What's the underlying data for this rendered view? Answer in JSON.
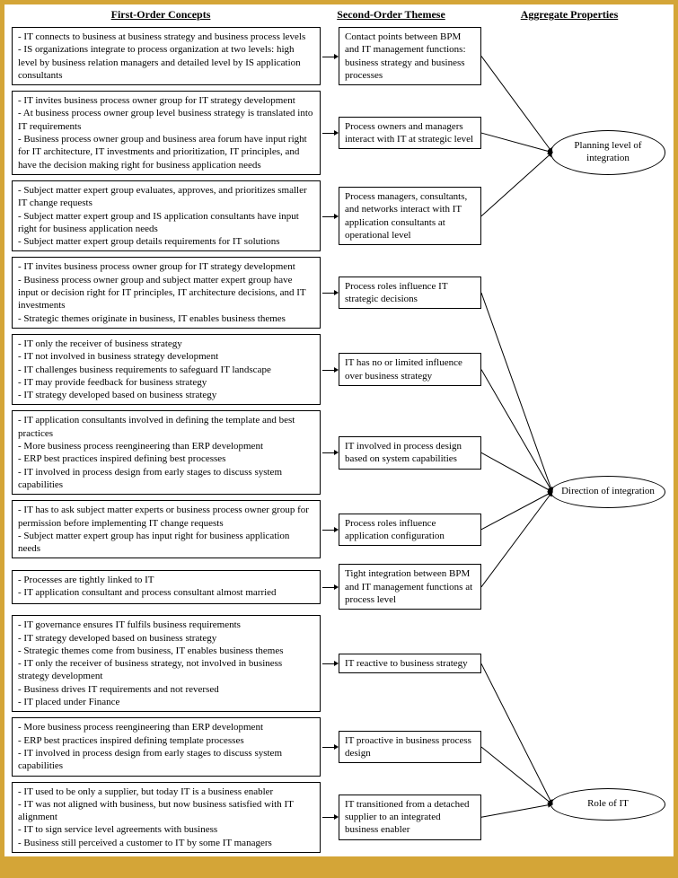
{
  "headers": {
    "col1": "First-Order Concepts",
    "col2": "Second-Order Themese",
    "col3": "Aggregate Properties"
  },
  "rows": [
    {
      "first": "- IT connects to business at business strategy and business process levels\n- IS organizations integrate to process organization at two levels: high level by business relation managers and detailed level by IS application consultants",
      "second": "Contact points between BPM and IT management functions: business strategy and business processes"
    },
    {
      "first": "- IT invites business process owner group for IT strategy development\n- At business process owner group level business strategy is translated into IT requirements\n- Business process owner group and business area forum have input right for IT architecture, IT investments and prioritization, IT principles, and have the decision making right for business application needs",
      "second": "Process owners and managers interact with IT at strategic level"
    },
    {
      "first": "- Subject matter expert group evaluates, approves, and prioritizes smaller IT change requests\n- Subject matter expert group and IS application consultants have input right for business application needs\n- Subject matter expert group details requirements for IT solutions",
      "second": "Process managers, consultants, and networks interact with IT application consultants at operational level"
    },
    {
      "first": "- IT invites business process owner group for IT strategy development\n- Business process owner group and subject matter expert group have input or decision right for IT principles, IT architecture decisions, and IT investments\n- Strategic themes originate in business, IT enables business themes",
      "second": "Process roles influence IT strategic decisions"
    },
    {
      "first": "- IT only the receiver of business strategy\n- IT not involved in business strategy development\n- IT challenges business requirements to safeguard IT landscape\n- IT may provide feedback for business strategy\n- IT strategy developed based on business strategy",
      "second": "IT has no or limited influence over business strategy"
    },
    {
      "first": "- IT application consultants involved in defining the template and best practices\n- More business process reengineering than ERP development\n- ERP best practices inspired defining best processes\n- IT involved in process design from early stages to discuss system capabilities",
      "second": "IT involved in process design based on system capabilities"
    },
    {
      "first": "- IT has to ask subject matter experts or business process owner group for permission before implementing IT change requests\n- Subject matter expert group has input right for business application needs",
      "second": "Process roles influence application configuration"
    },
    {
      "first": "- Processes are tightly linked to IT\n- IT application consultant and process consultant almost married",
      "second": "Tight integration between BPM and IT management functions at process level"
    },
    {
      "first": "- IT governance ensures IT fulfils business requirements\n- IT strategy developed based on business strategy\n- Strategic themes come from business, IT enables business themes\n- IT only the receiver of business strategy, not involved in business strategy development\n- Business drives IT requirements and not reversed\n- IT placed under Finance",
      "second": "IT reactive to business strategy"
    },
    {
      "first": "- More business process reengineering than ERP development\n- ERP best practices inspired defining template processes\n- IT involved in process design from early stages to discuss system capabilities",
      "second": "IT proactive in business process design"
    },
    {
      "first": "- IT used to be only a supplier, but today IT is a business enabler\n- IT was not aligned with business, but now business satisfied with IT alignment\n- IT to sign service level agreements with business\n- Business still perceived a customer to IT by some IT managers",
      "second": "IT transitioned from a detached supplier to an integrated business enabler"
    }
  ],
  "aggregates": [
    {
      "label": "Planning level of integration"
    },
    {
      "label": "Direction of integration"
    },
    {
      "label": "Role of IT"
    }
  ]
}
